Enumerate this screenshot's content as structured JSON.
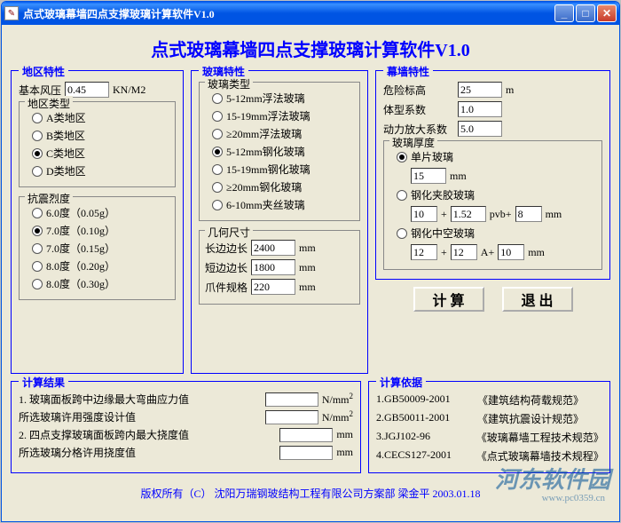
{
  "window": {
    "title": "点式玻璃幕墙四点支撑玻璃计算软件V1.0"
  },
  "main_title": "点式玻璃幕墙四点支撑玻璃计算软件V1.0",
  "region": {
    "group_title": "地区特性",
    "wind_label": "基本风压",
    "wind_value": "0.45",
    "wind_unit": "KN/M2",
    "type_group": "地区类型",
    "types": [
      "A类地区",
      "B类地区",
      "C类地区",
      "D类地区"
    ],
    "type_selected": 2,
    "seismic_group": "抗震烈度",
    "seismic": [
      "6.0度（0.05g）",
      "7.0度（0.10g）",
      "7.0度（0.15g）",
      "8.0度（0.20g）",
      "8.0度（0.30g）"
    ],
    "seismic_selected": 1
  },
  "glass": {
    "group_title": "玻璃特性",
    "type_group": "玻璃类型",
    "types": [
      "5-12mm浮法玻璃",
      "15-19mm浮法玻璃",
      "≥20mm浮法玻璃",
      "5-12mm钢化玻璃",
      "15-19mm钢化玻璃",
      "≥20mm钢化玻璃",
      "6-10mm夹丝玻璃"
    ],
    "type_selected": 3,
    "geom_group": "几何尺寸",
    "long_label": "长边边长",
    "long_value": "2400",
    "long_unit": "mm",
    "short_label": "短边边长",
    "short_value": "1800",
    "short_unit": "mm",
    "claw_label": "爪件规格",
    "claw_value": "220",
    "claw_unit": "mm"
  },
  "wall": {
    "group_title": "幕墙特性",
    "danger_label": "危险标高",
    "danger_value": "25",
    "danger_unit": "m",
    "shape_label": "体型系数",
    "shape_value": "1.0",
    "dynamic_label": "动力放大系数",
    "dynamic_value": "5.0",
    "thick_group": "玻璃厚度",
    "single_label": "单片玻璃",
    "single_value": "15",
    "single_unit": "mm",
    "single_checked": true,
    "lamin_label": "钢化夹胶玻璃",
    "lamin_a": "10",
    "lamin_p": "1.52",
    "lamin_pvb": "pvb+",
    "lamin_b": "8",
    "lamin_unit": "mm",
    "hollow_label": "钢化中空玻璃",
    "hollow_a": "12",
    "hollow_b": "12",
    "hollow_A": "A+",
    "hollow_c": "10",
    "hollow_unit": "mm"
  },
  "buttons": {
    "calc": "计 算",
    "exit": "退 出"
  },
  "results": {
    "group_title": "计算结果",
    "r1": "1. 玻璃面板跨中边缘最大弯曲应力值",
    "r2": "   所选玻璃许用强度设计值",
    "r3": "2. 四点支撑玻璃面板跨内最大挠度值",
    "r4": "   所选玻璃分格许用挠度值",
    "unit_stress": "N/mm²",
    "unit_len": "mm"
  },
  "basis": {
    "group_title": "计算依据",
    "items": [
      {
        "code": "1.GB50009-2001",
        "name": "《建筑结构荷载规范》"
      },
      {
        "code": "2.GB50011-2001",
        "name": "《建筑抗震设计规范》"
      },
      {
        "code": "3.JGJ102-96",
        "name": "《玻璃幕墙工程技术规范》"
      },
      {
        "code": "4.CECS127-2001",
        "name": "《点式玻璃幕墙技术规程》"
      }
    ]
  },
  "footer": "版权所有（C）  沈阳万瑞钢玻结构工程有限公司方案部   梁金平   2003.01.18",
  "watermark": {
    "main": "河东软件园",
    "sub": "www.pc0359.cn"
  }
}
